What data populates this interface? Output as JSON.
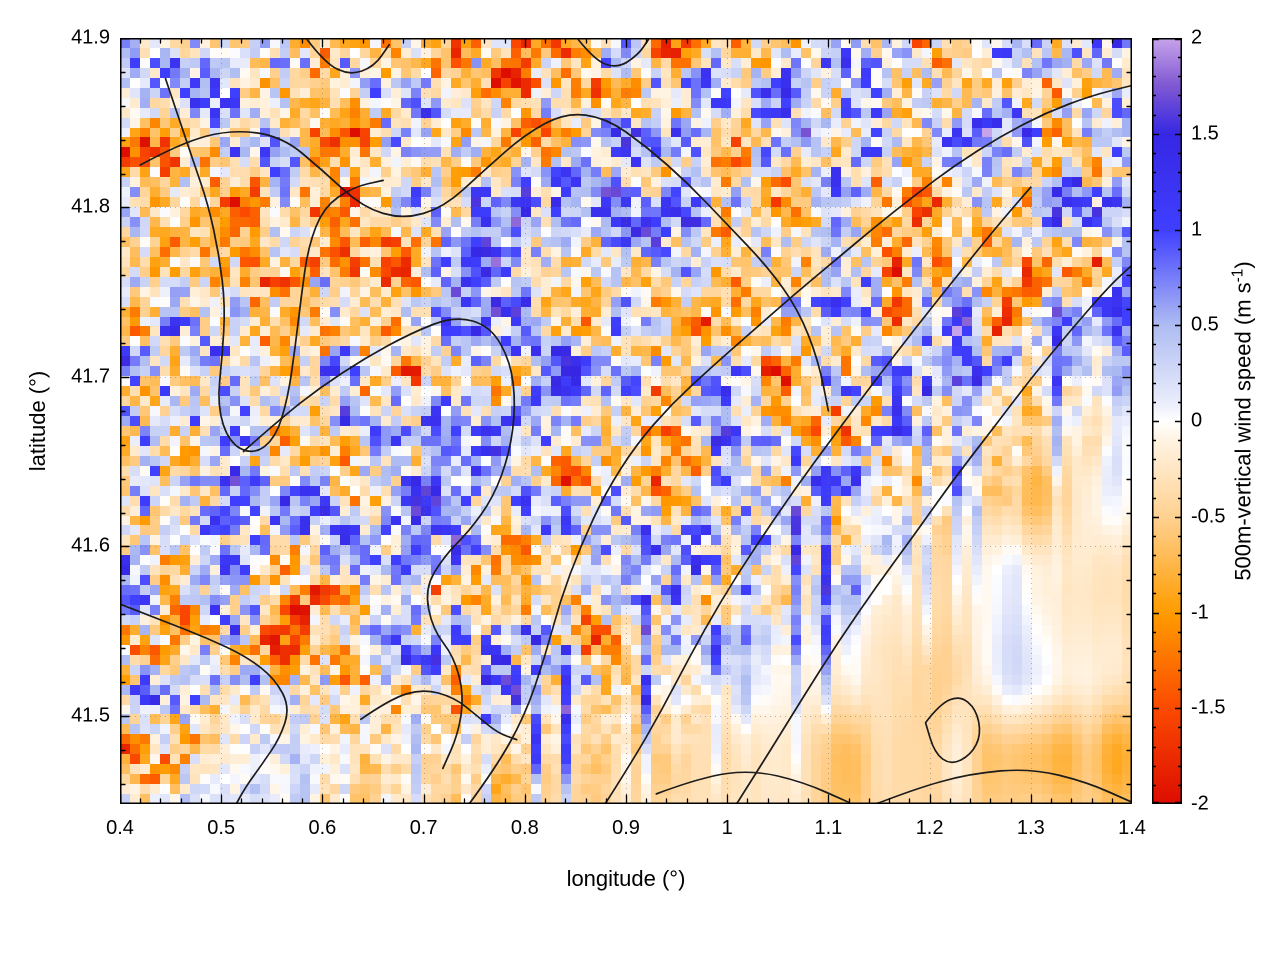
{
  "figure": {
    "background": "#ffffff"
  },
  "chart_data": {
    "type": "heatmap",
    "title": "",
    "xlabel": "longitude (°)",
    "ylabel": "latitude (°)",
    "colorbar_label_parts": {
      "prefix": "500m-vertical wind speed (m s",
      "superscript": "-1",
      "suffix": ")"
    },
    "x_range": [
      0.4,
      1.4
    ],
    "y_range": [
      41.448,
      41.9
    ],
    "color_range": [
      -2,
      2
    ],
    "x_tick_values": [
      0.4,
      0.5,
      0.6,
      0.7,
      0.8,
      0.9,
      1.0,
      1.1,
      1.2,
      1.3,
      1.4
    ],
    "x_tick_labels": [
      "0.4",
      "0.5",
      "0.6",
      "0.7",
      "0.8",
      "0.9",
      "1",
      "1.1",
      "1.2",
      "1.3",
      "1.4"
    ],
    "y_tick_values": [
      41.5,
      41.6,
      41.7,
      41.8,
      41.9
    ],
    "y_tick_labels": [
      "41.5",
      "41.6",
      "41.7",
      "41.8",
      "41.9"
    ],
    "cb_tick_values": [
      2,
      1.5,
      1,
      0.5,
      0,
      -0.5,
      -1,
      -1.5,
      -2
    ],
    "cb_tick_labels": [
      "2",
      "1.5",
      "1",
      "0.5",
      "0",
      "-0.5",
      "-1",
      "-1.5",
      "-2"
    ],
    "x_major_step": 0.1,
    "y_major_step": 0.1,
    "x_minor_step": 0.02,
    "y_minor_step": 0.02,
    "cb_minor_step": 0.1,
    "grid": {
      "visible": true,
      "style": "dotted",
      "color": "rgba(110,110,110,0.5)"
    },
    "legend_position": "right-colorbar",
    "colormap": [
      [
        -2.0,
        "#dd0d00"
      ],
      [
        -1.5,
        "#fb4a00"
      ],
      [
        -1.0,
        "#ff9c00"
      ],
      [
        -0.5,
        "#ffd191"
      ],
      [
        -0.1,
        "#fff3e2"
      ],
      [
        0.0,
        "#ffffff"
      ],
      [
        0.1,
        "#e9ecfb"
      ],
      [
        0.5,
        "#aebcf2"
      ],
      [
        1.0,
        "#3f3fff"
      ],
      [
        1.5,
        "#3627e3"
      ],
      [
        1.75,
        "#7e57d2"
      ],
      [
        2.0,
        "#c7a3ea"
      ]
    ],
    "field": {
      "nx": 101,
      "ny": 77,
      "seed": 11,
      "note": "Per-cell speckle values are below legibility in the source; reproduced as seeded noise: strong ±2 m/s speckle over land (upper/left), smooth ~-0.3 m/s over the lower-right (sea) with vertical streaks along the transition."
    },
    "contours": [
      [
        [
          0.42,
          41.825
        ],
        [
          0.46,
          41.838
        ],
        [
          0.51,
          41.846
        ],
        [
          0.56,
          41.842
        ],
        [
          0.6,
          41.822
        ],
        [
          0.64,
          41.8
        ],
        [
          0.68,
          41.793
        ],
        [
          0.72,
          41.8
        ],
        [
          0.76,
          41.822
        ],
        [
          0.8,
          41.843
        ],
        [
          0.84,
          41.856
        ],
        [
          0.88,
          41.853
        ],
        [
          0.92,
          41.836
        ],
        [
          0.96,
          41.815
        ],
        [
          1.0,
          41.79
        ],
        [
          1.04,
          41.765
        ],
        [
          1.07,
          41.74
        ],
        [
          1.09,
          41.71
        ],
        [
          1.1,
          41.68
        ]
      ],
      [
        [
          0.74,
          41.444
        ],
        [
          0.77,
          41.468
        ],
        [
          0.8,
          41.5
        ],
        [
          0.82,
          41.535
        ],
        [
          0.835,
          41.568
        ],
        [
          0.855,
          41.6
        ],
        [
          0.88,
          41.632
        ],
        [
          0.91,
          41.66
        ],
        [
          0.945,
          41.684
        ],
        [
          0.985,
          41.706
        ],
        [
          1.025,
          41.727
        ],
        [
          1.065,
          41.748
        ],
        [
          1.105,
          41.768
        ],
        [
          1.145,
          41.788
        ],
        [
          1.185,
          41.807
        ],
        [
          1.225,
          41.825
        ],
        [
          1.27,
          41.842
        ],
        [
          1.315,
          41.856
        ],
        [
          1.36,
          41.866
        ],
        [
          1.4,
          41.872
        ]
      ],
      [
        [
          0.875,
          41.444
        ],
        [
          0.905,
          41.472
        ],
        [
          0.935,
          41.503
        ],
        [
          0.963,
          41.535
        ],
        [
          0.993,
          41.567
        ],
        [
          1.028,
          41.6
        ],
        [
          1.066,
          41.633
        ],
        [
          1.105,
          41.665
        ],
        [
          1.145,
          41.697
        ],
        [
          1.185,
          41.728
        ],
        [
          1.225,
          41.758
        ],
        [
          1.264,
          41.787
        ],
        [
          1.3,
          41.812
        ]
      ],
      [
        [
          1.005,
          41.444
        ],
        [
          1.04,
          41.477
        ],
        [
          1.075,
          41.511
        ],
        [
          1.11,
          41.544
        ],
        [
          1.147,
          41.576
        ],
        [
          1.185,
          41.607
        ],
        [
          1.223,
          41.639
        ],
        [
          1.262,
          41.669
        ],
        [
          1.3,
          41.699
        ],
        [
          1.34,
          41.728
        ],
        [
          1.378,
          41.754
        ],
        [
          1.4,
          41.766
        ]
      ],
      [
        [
          0.445,
          41.876
        ],
        [
          0.458,
          41.853
        ],
        [
          0.472,
          41.828
        ],
        [
          0.487,
          41.802
        ],
        [
          0.498,
          41.772
        ],
        [
          0.504,
          41.742
        ],
        [
          0.501,
          41.712
        ],
        [
          0.496,
          41.683
        ],
        [
          0.508,
          41.661
        ],
        [
          0.532,
          41.654
        ],
        [
          0.554,
          41.664
        ],
        [
          0.566,
          41.688
        ],
        [
          0.573,
          41.717
        ],
        [
          0.579,
          41.747
        ],
        [
          0.586,
          41.777
        ],
        [
          0.601,
          41.8
        ],
        [
          0.63,
          41.812
        ],
        [
          0.66,
          41.816
        ]
      ],
      [
        [
          0.522,
          41.656
        ],
        [
          0.558,
          41.675
        ],
        [
          0.598,
          41.694
        ],
        [
          0.642,
          41.711
        ],
        [
          0.688,
          41.726
        ],
        [
          0.731,
          41.736
        ],
        [
          0.766,
          41.73
        ],
        [
          0.786,
          41.709
        ],
        [
          0.791,
          41.683
        ],
        [
          0.785,
          41.655
        ],
        [
          0.769,
          41.629
        ],
        [
          0.745,
          41.609
        ],
        [
          0.72,
          41.594
        ],
        [
          0.701,
          41.575
        ],
        [
          0.709,
          41.551
        ],
        [
          0.73,
          41.535
        ],
        [
          0.74,
          41.512
        ],
        [
          0.734,
          41.489
        ],
        [
          0.719,
          41.469
        ]
      ],
      [
        [
          0.4,
          41.566
        ],
        [
          0.443,
          41.556
        ],
        [
          0.486,
          41.546
        ],
        [
          0.525,
          41.535
        ],
        [
          0.553,
          41.522
        ],
        [
          0.568,
          41.505
        ],
        [
          0.558,
          41.487
        ],
        [
          0.541,
          41.472
        ],
        [
          0.524,
          41.458
        ],
        [
          0.513,
          41.446
        ]
      ],
      [
        [
          0.638,
          41.498
        ],
        [
          0.667,
          41.51
        ],
        [
          0.699,
          41.516
        ],
        [
          0.73,
          41.511
        ],
        [
          0.753,
          41.5
        ],
        [
          0.773,
          41.49
        ],
        [
          0.792,
          41.486
        ]
      ],
      [
        [
          0.93,
          41.454
        ],
        [
          0.975,
          41.464
        ],
        [
          1.025,
          41.468
        ],
        [
          1.075,
          41.461
        ],
        [
          1.12,
          41.449
        ]
      ],
      [
        [
          1.196,
          41.496
        ],
        [
          1.21,
          41.507
        ],
        [
          1.23,
          41.512
        ],
        [
          1.246,
          41.504
        ],
        [
          1.251,
          41.489
        ],
        [
          1.241,
          41.477
        ],
        [
          1.221,
          41.471
        ],
        [
          1.205,
          41.478
        ],
        [
          1.196,
          41.496
        ]
      ],
      [
        [
          1.13,
          41.444
        ],
        [
          1.18,
          41.456
        ],
        [
          1.24,
          41.466
        ],
        [
          1.3,
          41.469
        ],
        [
          1.355,
          41.461
        ],
        [
          1.4,
          41.449
        ]
      ],
      [
        [
          0.585,
          41.899
        ],
        [
          0.603,
          41.885
        ],
        [
          0.627,
          41.878
        ],
        [
          0.651,
          41.883
        ],
        [
          0.666,
          41.896
        ]
      ],
      [
        [
          0.853,
          41.899
        ],
        [
          0.869,
          41.887
        ],
        [
          0.891,
          41.882
        ],
        [
          0.912,
          41.89
        ],
        [
          0.922,
          41.899
        ]
      ]
    ]
  }
}
